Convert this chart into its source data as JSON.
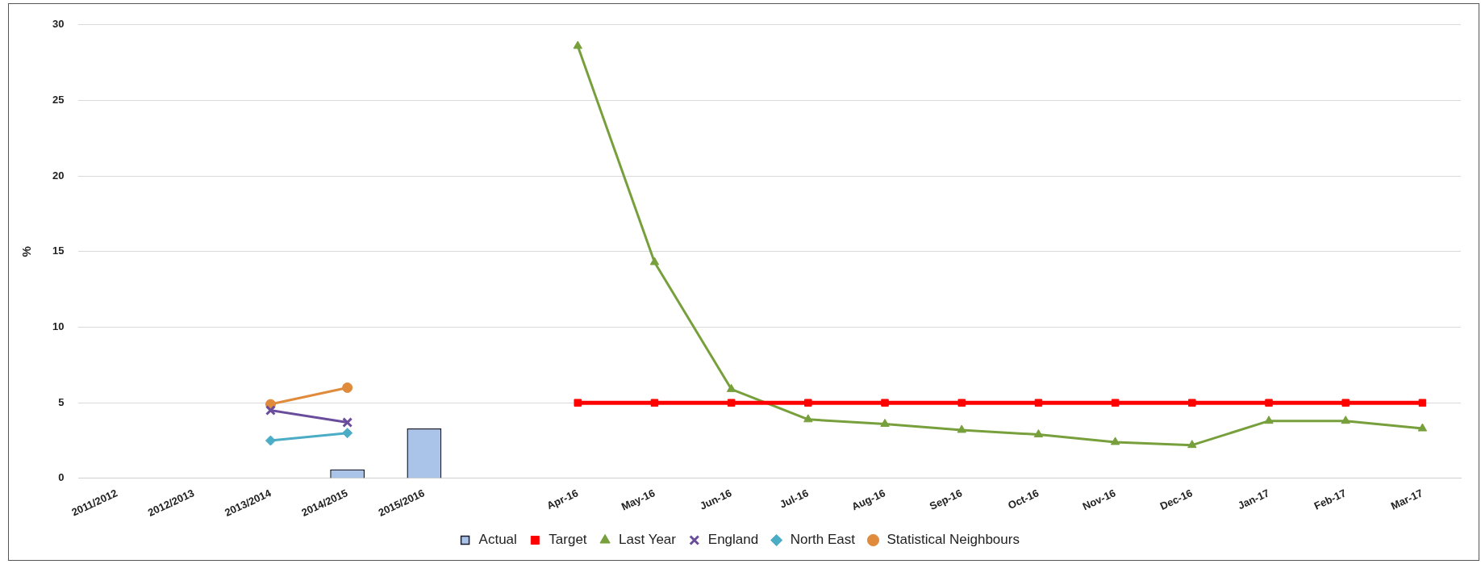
{
  "chart_data": {
    "type": "bar",
    "ylabel": "%",
    "categories": [
      "2011/2012",
      "2012/2013",
      "2013/2014",
      "2014/2015",
      "2015/2016",
      null,
      "Apr-16",
      "May-16",
      "Jun-16",
      "Jul-16",
      "Aug-16",
      "Sep-16",
      "Oct-16",
      "Nov-16",
      "Dec-16",
      "Jan-17",
      "Feb-17",
      "Mar-17"
    ],
    "ylim": [
      0,
      30
    ],
    "yticks": [
      0,
      5,
      10,
      15,
      20,
      25,
      30
    ],
    "grid": "y",
    "legend": "bottom",
    "series": [
      {
        "name": "Actual",
        "color": "#a9c4e8",
        "values": [
          null,
          null,
          null,
          0.6,
          3.3,
          null,
          null,
          null,
          null,
          null,
          null,
          null,
          null,
          null,
          null,
          null,
          null,
          null
        ]
      },
      {
        "name": "Target",
        "type": "line",
        "marker": "square",
        "color": "#ff0000",
        "values": [
          null,
          null,
          null,
          null,
          null,
          null,
          5,
          5,
          5,
          5,
          5,
          5,
          5,
          5,
          5,
          5,
          5,
          5
        ]
      },
      {
        "name": "Last Year",
        "type": "line",
        "marker": "triangle",
        "color": "#77a03c",
        "values": [
          null,
          null,
          null,
          null,
          null,
          null,
          28.6,
          14.3,
          5.9,
          3.9,
          3.6,
          3.2,
          2.9,
          2.4,
          2.2,
          3.8,
          3.8,
          3.3
        ]
      },
      {
        "name": "England",
        "type": "line",
        "marker": "cross",
        "color": "#6a4c9c",
        "values": [
          null,
          null,
          4.5,
          3.7,
          null,
          null,
          null,
          null,
          null,
          null,
          null,
          null,
          null,
          null,
          null,
          null,
          null,
          null
        ]
      },
      {
        "name": "North East",
        "type": "line",
        "marker": "diamond",
        "color": "#4bacc6",
        "values": [
          null,
          null,
          2.5,
          3.0,
          null,
          null,
          null,
          null,
          null,
          null,
          null,
          null,
          null,
          null,
          null,
          null,
          null,
          null
        ]
      },
      {
        "name": "Statistical Neighbours",
        "type": "line",
        "marker": "circle",
        "color": "#e08a3c",
        "values": [
          null,
          null,
          4.9,
          6.0,
          null,
          null,
          null,
          null,
          null,
          null,
          null,
          null,
          null,
          null,
          null,
          null,
          null,
          null
        ]
      }
    ]
  }
}
